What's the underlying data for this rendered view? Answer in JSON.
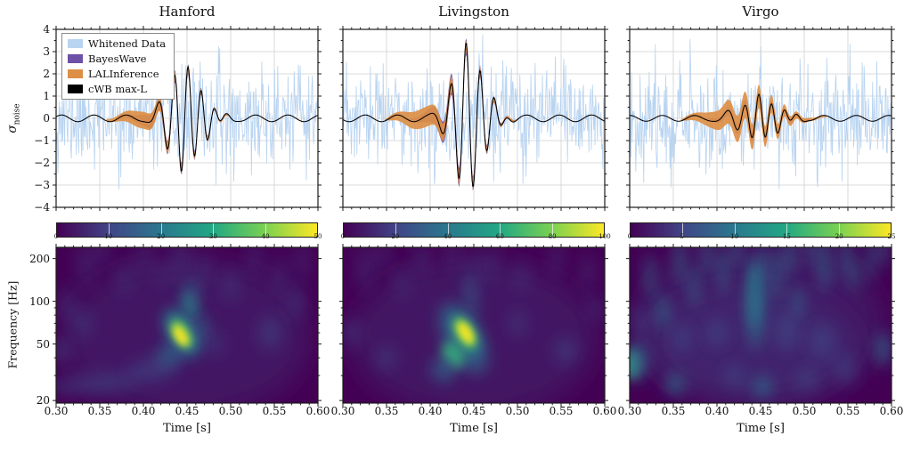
{
  "figure": {
    "ylabel_sigma": "σ",
    "ylabel_sigma_sub": "noise",
    "ylabel_freq": "Frequency [Hz]",
    "xlabel": "Time [s]",
    "legend": [
      {
        "label": "Whitened Data",
        "color": "#b9d4f1"
      },
      {
        "label": "BayesWave",
        "color": "#6d51a6"
      },
      {
        "label": "LALInference",
        "color": "#dd8f45"
      },
      {
        "label": "cWB max-L",
        "color": "#000000"
      }
    ],
    "colormap_viridis": [
      "#440154",
      "#414487",
      "#2a788e",
      "#22a884",
      "#7ad151",
      "#fde725"
    ],
    "grid_color": "#cfcfcf",
    "noise_color": "#b9d4f1",
    "bayeswave_color": "#6d51a6",
    "lalinference_color": "#dd8f45",
    "cwb_color": "#000000",
    "spec_bg_color": "#440154",
    "blob_levels": {
      "-1": {
        "c": "#3f3b78",
        "o": 0.38,
        "b": 14
      },
      "0": {
        "c": "#3b528b",
        "o": 0.5,
        "b": 9
      },
      "1": {
        "c": "#2d708e",
        "o": 0.62,
        "b": 8
      },
      "2": {
        "c": "#21918c",
        "o": 0.78,
        "b": 7
      },
      "3": {
        "c": "#35b779",
        "o": 0.85,
        "b": 6
      },
      "4": {
        "c": "#90d743",
        "o": 0.9,
        "b": 5
      },
      "5": {
        "c": "#fde725",
        "o": 0.95,
        "b": 4
      }
    }
  },
  "chart_data": [
    {
      "type": "line+heatmap",
      "title": "Hanford",
      "x_range": [
        0.3,
        0.6
      ],
      "x_ticks": [
        0.3,
        0.35,
        0.4,
        0.45,
        0.5,
        0.55,
        0.6
      ],
      "y_range": [
        -4,
        4
      ],
      "y_ticks": [
        4,
        3,
        2,
        1,
        0,
        -1,
        -2,
        -3,
        -4
      ],
      "freq_range": [
        19,
        240
      ],
      "freq_ticks": [
        200,
        100,
        50,
        20
      ],
      "freq_minor_ticks": [
        30,
        40,
        60,
        70,
        80,
        90
      ],
      "colorbar": {
        "range": [
          0,
          50
        ],
        "ticks": [
          0,
          10,
          20,
          30,
          40,
          50
        ]
      },
      "signal": {
        "t_fstart": 0.335,
        "f_start": 24,
        "f_end": 66,
        "t_peak": 0.4435,
        "rise": 0.0155,
        "fall": 0.021,
        "peak_amplitude": 2.35,
        "polarity": -1,
        "baseline_amplitude": 0.15,
        "baseline_freq": 27,
        "baseline_phase": 0.5
      },
      "bands": {
        "bayeswave": {
          "t0": 0.362,
          "t1": 0.525,
          "wE": 0.22,
          "tE": 0.408,
          "sE": 0.016,
          "wC": 0.24,
          "sC": 0.024
        },
        "lalinference": {
          "t0": 0.352,
          "t1": 0.525,
          "wE": 0.33,
          "tE": 0.398,
          "sE": 0.02,
          "wC": 0.17,
          "sC": 0.028
        }
      },
      "noise": {
        "seed": 11,
        "sigma": 1.12,
        "n": 430,
        "clip": 3.8
      },
      "spectrogram_blobs": [
        [
          0.45,
          55,
          0.14,
          0.55,
          0,
          -1
        ],
        [
          0.34,
          26,
          0.05,
          0.07,
          -4,
          0
        ],
        [
          0.41,
          33,
          0.03,
          0.08,
          -12,
          0
        ],
        [
          0.43,
          42,
          0.015,
          0.08,
          -25,
          1
        ],
        [
          0.4445,
          60,
          0.017,
          0.2,
          -30,
          1
        ],
        [
          0.444,
          60,
          0.012,
          0.15,
          -32,
          2
        ],
        [
          0.4435,
          59,
          0.0085,
          0.105,
          -32,
          4
        ],
        [
          0.4428,
          57,
          0.0055,
          0.075,
          -32,
          5
        ],
        [
          0.453,
          95,
          0.0075,
          0.11,
          -18,
          2
        ],
        [
          0.457,
          115,
          0.006,
          0.1,
          -10,
          1
        ],
        [
          0.468,
          65,
          0.007,
          0.09,
          0,
          1
        ],
        [
          0.482,
          50,
          0.008,
          0.08,
          0,
          0
        ],
        [
          0.333,
          180,
          0.006,
          0.16,
          0,
          0
        ],
        [
          0.352,
          220,
          0.005,
          0.12,
          0,
          0
        ],
        [
          0.378,
          150,
          0.005,
          0.13,
          0,
          0
        ],
        [
          0.4,
          205,
          0.005,
          0.14,
          0,
          0
        ],
        [
          0.422,
          160,
          0.004,
          0.1,
          0,
          0
        ],
        [
          0.443,
          200,
          0.006,
          0.17,
          0,
          0
        ],
        [
          0.468,
          170,
          0.005,
          0.12,
          0,
          0
        ],
        [
          0.5,
          130,
          0.006,
          0.12,
          0,
          0
        ],
        [
          0.528,
          200,
          0.005,
          0.13,
          0,
          0
        ],
        [
          0.556,
          150,
          0.006,
          0.14,
          0,
          0
        ],
        [
          0.582,
          190,
          0.005,
          0.14,
          0,
          0
        ],
        [
          0.312,
          95,
          0.007,
          0.13,
          0,
          0
        ],
        [
          0.306,
          45,
          0.009,
          0.1,
          0,
          0
        ],
        [
          0.33,
          70,
          0.008,
          0.1,
          0,
          0
        ],
        [
          0.545,
          60,
          0.012,
          0.12,
          0,
          0
        ],
        [
          0.575,
          100,
          0.008,
          0.12,
          0,
          0
        ]
      ]
    },
    {
      "type": "line+heatmap",
      "title": "Livingston",
      "x_range": [
        0.3,
        0.6
      ],
      "x_ticks": [
        0.3,
        0.35,
        0.4,
        0.45,
        0.5,
        0.55,
        0.6
      ],
      "y_range": [
        -4,
        4
      ],
      "y_ticks": [
        4,
        3,
        2,
        1,
        0,
        -1,
        -2,
        -3,
        -4
      ],
      "freq_range": [
        19,
        240
      ],
      "freq_ticks": [
        200,
        100,
        50,
        20
      ],
      "freq_minor_ticks": [
        30,
        40,
        60,
        70,
        80,
        90
      ],
      "colorbar": {
        "range": [
          0,
          100
        ],
        "ticks": [
          0,
          20,
          40,
          60,
          80,
          100
        ]
      },
      "signal": {
        "t_fstart": 0.33,
        "f_start": 24,
        "f_end": 62,
        "t_peak": 0.441,
        "rise": 0.0145,
        "fall": 0.019,
        "peak_amplitude": 3.3,
        "polarity": 1,
        "baseline_amplitude": 0.15,
        "baseline_freq": 27,
        "baseline_phase": 3.5
      },
      "bands": {
        "bayeswave": {
          "t0": 0.36,
          "t1": 0.525,
          "wE": 0.3,
          "tE": 0.412,
          "sE": 0.017,
          "wC": 0.3,
          "sC": 0.026
        },
        "lalinference": {
          "t0": 0.345,
          "t1": 0.525,
          "wE": 0.4,
          "tE": 0.392,
          "sE": 0.024,
          "wC": 0.22,
          "sC": 0.028
        }
      },
      "noise": {
        "seed": 23,
        "sigma": 1.15,
        "n": 430,
        "clip": 3.8
      },
      "spectrogram_blobs": [
        [
          0.45,
          55,
          0.14,
          0.55,
          0,
          -1
        ],
        [
          0.438,
          55,
          0.022,
          0.28,
          -28,
          1
        ],
        [
          0.4395,
          58,
          0.013,
          0.17,
          -30,
          2
        ],
        [
          0.44,
          60,
          0.009,
          0.115,
          -30,
          4
        ],
        [
          0.4405,
          60,
          0.006,
          0.08,
          -30,
          5
        ],
        [
          0.426,
          42,
          0.011,
          0.1,
          -30,
          3
        ],
        [
          0.415,
          33,
          0.014,
          0.09,
          -20,
          1
        ],
        [
          0.447,
          105,
          0.006,
          0.14,
          -8,
          1
        ],
        [
          0.449,
          160,
          0.005,
          0.16,
          0,
          0
        ],
        [
          0.325,
          170,
          0.006,
          0.16,
          0,
          0
        ],
        [
          0.345,
          210,
          0.005,
          0.12,
          0,
          0
        ],
        [
          0.368,
          140,
          0.005,
          0.12,
          0,
          0
        ],
        [
          0.39,
          200,
          0.005,
          0.13,
          0,
          0
        ],
        [
          0.425,
          210,
          0.004,
          0.12,
          0,
          0
        ],
        [
          0.47,
          185,
          0.005,
          0.12,
          0,
          0
        ],
        [
          0.505,
          150,
          0.005,
          0.11,
          0,
          0
        ],
        [
          0.545,
          200,
          0.005,
          0.12,
          0,
          0
        ],
        [
          0.58,
          160,
          0.005,
          0.13,
          0,
          0
        ],
        [
          0.31,
          60,
          0.008,
          0.1,
          0,
          0
        ],
        [
          0.35,
          40,
          0.01,
          0.08,
          0,
          0
        ],
        [
          0.5,
          70,
          0.008,
          0.09,
          0,
          0
        ],
        [
          0.555,
          45,
          0.012,
          0.09,
          0,
          0
        ],
        [
          0.59,
          90,
          0.006,
          0.1,
          0,
          0
        ]
      ]
    },
    {
      "type": "line+heatmap",
      "title": "Virgo",
      "x_range": [
        0.3,
        0.6
      ],
      "x_ticks": [
        0.3,
        0.35,
        0.4,
        0.45,
        0.5,
        0.55,
        0.6
      ],
      "y_range": [
        -4,
        4
      ],
      "y_ticks": [
        4,
        3,
        2,
        1,
        0,
        -1,
        -2,
        -3,
        -4
      ],
      "freq_range": [
        19,
        240
      ],
      "freq_ticks": [
        200,
        100,
        50,
        20
      ],
      "freq_minor_ticks": [
        30,
        40,
        60,
        70,
        80,
        90
      ],
      "colorbar": {
        "range": [
          0,
          25
        ],
        "ticks": [
          0,
          5,
          10,
          15,
          20,
          25
        ]
      },
      "signal": {
        "t_fstart": 0.34,
        "f_start": 26,
        "f_end": 68,
        "t_peak": 0.448,
        "rise": 0.021,
        "fall": 0.021,
        "peak_amplitude": 0.95,
        "polarity": 1,
        "baseline_amplitude": 0.13,
        "baseline_freq": 27,
        "baseline_phase": 1.5
      },
      "bands": {
        "bayeswave": {
          "t0": 0.37,
          "t1": 0.53,
          "wE": 0.12,
          "tE": 0.42,
          "sE": 0.02,
          "wC": 0.14,
          "sC": 0.03
        },
        "lalinference": {
          "t0": 0.355,
          "t1": 0.535,
          "wE": 0.34,
          "tE": 0.415,
          "sE": 0.03,
          "wC": 0.34,
          "sC": 0.034
        }
      },
      "noise": {
        "seed": 37,
        "sigma": 1.15,
        "n": 430,
        "clip": 3.8
      },
      "spectrogram_blobs": [
        [
          0.45,
          70,
          0.14,
          0.6,
          0,
          -1
        ],
        [
          0.44,
          50,
          0.12,
          0.4,
          0,
          -1
        ],
        [
          0.302,
          36,
          0.009,
          0.1,
          0,
          3
        ],
        [
          0.308,
          38,
          0.015,
          0.14,
          0,
          1
        ],
        [
          0.443,
          110,
          0.006,
          0.24,
          0,
          2
        ],
        [
          0.444,
          95,
          0.011,
          0.32,
          0,
          1
        ],
        [
          0.323,
          150,
          0.006,
          0.16,
          0,
          1
        ],
        [
          0.338,
          85,
          0.008,
          0.12,
          0,
          1
        ],
        [
          0.357,
          195,
          0.006,
          0.17,
          0,
          1
        ],
        [
          0.374,
          125,
          0.006,
          0.14,
          0,
          1
        ],
        [
          0.388,
          215,
          0.005,
          0.14,
          0,
          1
        ],
        [
          0.407,
          160,
          0.006,
          0.16,
          0,
          1
        ],
        [
          0.423,
          225,
          0.005,
          0.12,
          0,
          1
        ],
        [
          0.452,
          185,
          0.005,
          0.14,
          0,
          1
        ],
        [
          0.468,
          150,
          0.006,
          0.18,
          0,
          1
        ],
        [
          0.483,
          205,
          0.006,
          0.14,
          0,
          1
        ],
        [
          0.493,
          100,
          0.006,
          0.12,
          0,
          1
        ],
        [
          0.508,
          232,
          0.005,
          0.11,
          0,
          1
        ],
        [
          0.523,
          180,
          0.007,
          0.19,
          0,
          1
        ],
        [
          0.548,
          212,
          0.006,
          0.16,
          0,
          1
        ],
        [
          0.557,
          155,
          0.005,
          0.12,
          0,
          1
        ],
        [
          0.576,
          195,
          0.005,
          0.15,
          0,
          1
        ],
        [
          0.59,
          230,
          0.005,
          0.12,
          0,
          1
        ],
        [
          0.352,
          26,
          0.012,
          0.08,
          0,
          1
        ],
        [
          0.42,
          30,
          0.011,
          0.08,
          0,
          0
        ],
        [
          0.452,
          25,
          0.012,
          0.08,
          0,
          1
        ],
        [
          0.503,
          28,
          0.012,
          0.08,
          0,
          0
        ],
        [
          0.548,
          33,
          0.012,
          0.1,
          0,
          0
        ],
        [
          0.59,
          46,
          0.01,
          0.12,
          0,
          1
        ],
        [
          0.48,
          62,
          0.014,
          0.14,
          0,
          0
        ],
        [
          0.52,
          52,
          0.014,
          0.12,
          0,
          0
        ],
        [
          0.312,
          72,
          0.01,
          0.12,
          0,
          0
        ],
        [
          0.4,
          60,
          0.012,
          0.1,
          0,
          0
        ],
        [
          0.36,
          55,
          0.01,
          0.1,
          0,
          0
        ]
      ]
    }
  ]
}
